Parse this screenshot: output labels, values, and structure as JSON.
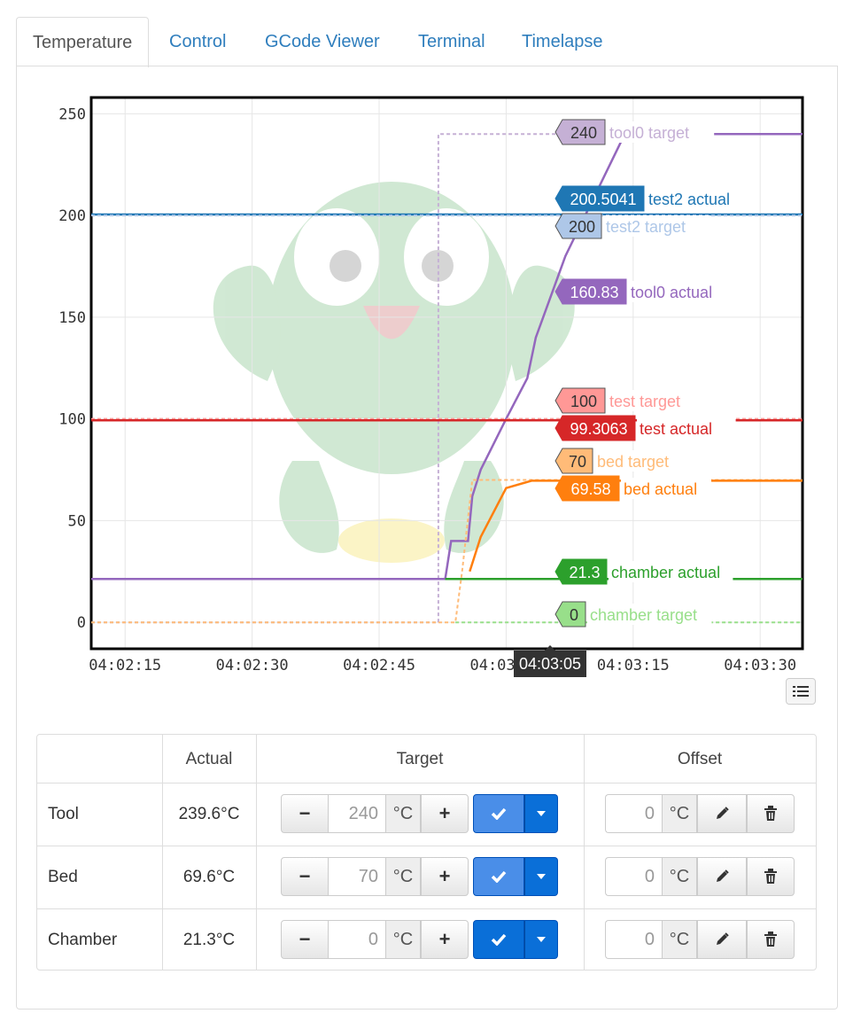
{
  "tabs": [
    "Temperature",
    "Control",
    "GCode Viewer",
    "Terminal",
    "Timelapse"
  ],
  "active_tab": "Temperature",
  "chart_data": {
    "type": "line",
    "x_ticks": [
      "04:02:15",
      "04:02:30",
      "04:02:45",
      "04:03:00",
      "04:03:15",
      "04:03:30"
    ],
    "hover_time": "04:03:05",
    "y_ticks": [
      0,
      50,
      100,
      150,
      200,
      250
    ],
    "ylim": [
      -13,
      258
    ],
    "grid": true,
    "series": [
      {
        "name": "tool0 target",
        "value": "240",
        "color": "#c5b0d5",
        "dashed": true,
        "points": [
          [
            0,
            0
          ],
          [
            41,
            0
          ],
          [
            41,
            240
          ],
          [
            58,
            240
          ],
          [
            84,
            240
          ]
        ]
      },
      {
        "name": "test2 actual",
        "value": "200.5041",
        "color": "#1f77b4",
        "dashed": false,
        "points": [
          [
            0,
            200.5
          ],
          [
            84,
            200.5
          ]
        ]
      },
      {
        "name": "test2 target",
        "value": "200",
        "color": "#aec7e8",
        "dashed": true,
        "points": [
          [
            0,
            200
          ],
          [
            84,
            200
          ]
        ]
      },
      {
        "name": "tool0 actual",
        "value": "160.83",
        "color": "#9467bd",
        "dashed": false,
        "points": [
          [
            0,
            21.3
          ],
          [
            41.8,
            21.3
          ],
          [
            42.5,
            40
          ],
          [
            44.5,
            40
          ],
          [
            45,
            62
          ],
          [
            46,
            75
          ],
          [
            49,
            100
          ],
          [
            51.5,
            120
          ],
          [
            52.5,
            140
          ],
          [
            56,
            180
          ],
          [
            63,
            240
          ],
          [
            84,
            240
          ]
        ]
      },
      {
        "name": "test target",
        "value": "100",
        "color": "#ff9896",
        "dashed": true,
        "points": [
          [
            0,
            100
          ],
          [
            84,
            100
          ]
        ]
      },
      {
        "name": "test actual",
        "value": "99.3063",
        "color": "#d62728",
        "dashed": false,
        "points": [
          [
            0,
            99.3
          ],
          [
            84,
            99.3
          ]
        ]
      },
      {
        "name": "bed target",
        "value": "70",
        "color": "#ffbb78",
        "dashed": true,
        "points": [
          [
            0,
            0
          ],
          [
            43,
            0
          ],
          [
            43.8,
            25
          ],
          [
            45,
            70
          ],
          [
            84,
            70
          ]
        ]
      },
      {
        "name": "bed actual",
        "value": "69.58",
        "color": "#ff7f0e",
        "dashed": false,
        "points": [
          [
            44.7,
            25
          ],
          [
            46,
            42
          ],
          [
            49,
            66
          ],
          [
            52,
            69.6
          ],
          [
            84,
            69.6
          ]
        ]
      },
      {
        "name": "chamber actual",
        "value": "21.3",
        "color": "#2ca02c",
        "dashed": false,
        "points": [
          [
            41.8,
            21.3
          ],
          [
            84,
            21.3
          ]
        ]
      },
      {
        "name": "chamber target",
        "value": "0",
        "color": "#98df8a",
        "dashed": true,
        "points": [
          [
            43,
            0
          ],
          [
            84,
            0
          ]
        ]
      }
    ]
  },
  "table": {
    "headers": {
      "name": "",
      "actual": "Actual",
      "target": "Target",
      "offset": "Offset"
    },
    "unit": "°C",
    "rows": [
      {
        "name": "Tool",
        "actual": "239.6°C",
        "target": "240",
        "offset": "0"
      },
      {
        "name": "Bed",
        "actual": "69.6°C",
        "target": "70",
        "offset": "0"
      },
      {
        "name": "Chamber",
        "actual": "21.3°C",
        "target": "0",
        "offset": "0"
      }
    ],
    "decrement_label": "−",
    "increment_label": "+"
  },
  "icons": {
    "set": "check-icon",
    "dropdown": "caret-down-icon",
    "edit": "pencil-icon",
    "delete": "trash-icon",
    "legend": "list-icon"
  }
}
